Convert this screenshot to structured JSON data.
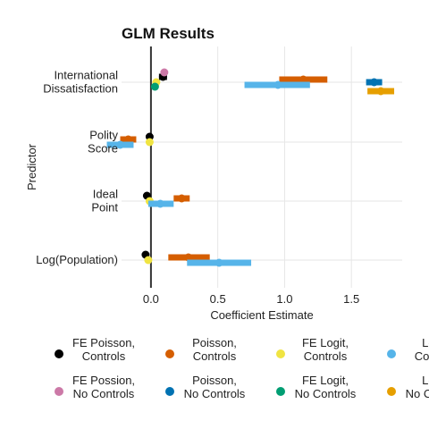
{
  "chart_data": {
    "type": "scatter",
    "title": "GLM Results",
    "xlabel": "Coefficient Estimate",
    "ylabel": "Predictor",
    "xlim": [
      -0.22,
      1.88
    ],
    "xticks": [
      0.0,
      0.5,
      1.0,
      1.5
    ],
    "xtick_labels": [
      "0.0",
      "0.5",
      "1.0",
      "1.5"
    ],
    "zero_line": 0,
    "grid": true,
    "legend_position": "bottom",
    "predictors": [
      {
        "lines": [
          "International",
          "Dissatisfaction"
        ]
      },
      {
        "lines": [
          "Polity",
          "Score"
        ]
      },
      {
        "lines": [
          "Ideal",
          "Point"
        ]
      },
      {
        "lines": [
          "Log(Population)"
        ]
      }
    ],
    "series": [
      {
        "label_lines": [
          "FE Poisson,",
          "Controls"
        ],
        "color": "#000000",
        "points": [
          {
            "predictor": 0,
            "estimate": 0.09,
            "ci": [
              0.06,
              0.12
            ]
          },
          {
            "predictor": 1,
            "estimate": -0.01,
            "ci": [
              -0.02,
              0.0
            ]
          },
          {
            "predictor": 2,
            "estimate": -0.03,
            "ci": [
              -0.04,
              -0.02
            ]
          },
          {
            "predictor": 3,
            "estimate": -0.04,
            "ci": [
              -0.06,
              -0.02
            ]
          }
        ]
      },
      {
        "label_lines": [
          "Poisson,",
          "Controls"
        ],
        "color": "#D55E00",
        "points": [
          {
            "predictor": 0,
            "estimate": 1.14,
            "ci": [
              0.96,
              1.32
            ]
          },
          {
            "predictor": 1,
            "estimate": -0.17,
            "ci": [
              -0.23,
              -0.11
            ]
          },
          {
            "predictor": 2,
            "estimate": 0.23,
            "ci": [
              0.17,
              0.29
            ]
          },
          {
            "predictor": 3,
            "estimate": 0.28,
            "ci": [
              0.13,
              0.44
            ]
          }
        ]
      },
      {
        "label_lines": [
          "FE Logit,",
          "Controls"
        ],
        "color": "#F0E442",
        "points": [
          {
            "predictor": 0,
            "estimate": 0.04,
            "ci": [
              0.04,
              0.04
            ]
          },
          {
            "predictor": 1,
            "estimate": -0.01,
            "ci": [
              -0.01,
              -0.01
            ]
          },
          {
            "predictor": 2,
            "estimate": -0.01,
            "ci": [
              -0.01,
              -0.01
            ]
          },
          {
            "predictor": 3,
            "estimate": -0.02,
            "ci": [
              -0.02,
              -0.02
            ]
          }
        ]
      },
      {
        "label_lines": [
          "Logit,",
          "Controls"
        ],
        "color": "#56B4E9",
        "points": [
          {
            "predictor": 0,
            "estimate": 0.95,
            "ci": [
              0.7,
              1.19
            ]
          },
          {
            "predictor": 1,
            "estimate": -0.23,
            "ci": [
              -0.33,
              -0.13
            ]
          },
          {
            "predictor": 2,
            "estimate": 0.07,
            "ci": [
              -0.02,
              0.17
            ]
          },
          {
            "predictor": 3,
            "estimate": 0.51,
            "ci": [
              0.27,
              0.75
            ]
          }
        ]
      },
      {
        "label_lines": [
          "FE Possion,",
          "No Controls"
        ],
        "color": "#CC79A7",
        "points": [
          {
            "predictor": 0,
            "estimate": 0.1,
            "ci": [
              0.1,
              0.1
            ]
          }
        ]
      },
      {
        "label_lines": [
          "Poisson,",
          "No Controls"
        ],
        "color": "#0072B2",
        "points": [
          {
            "predictor": 0,
            "estimate": 1.67,
            "ci": [
              1.61,
              1.73
            ]
          }
        ]
      },
      {
        "label_lines": [
          "FE Logit,",
          "No Controls"
        ],
        "color": "#009E73",
        "points": [
          {
            "predictor": 0,
            "estimate": 0.03,
            "ci": [
              0.03,
              0.03
            ]
          }
        ]
      },
      {
        "label_lines": [
          "Logit,",
          "No Controls"
        ],
        "color": "#E69F00",
        "points": [
          {
            "predictor": 0,
            "estimate": 1.72,
            "ci": [
              1.62,
              1.82
            ]
          }
        ]
      }
    ]
  }
}
